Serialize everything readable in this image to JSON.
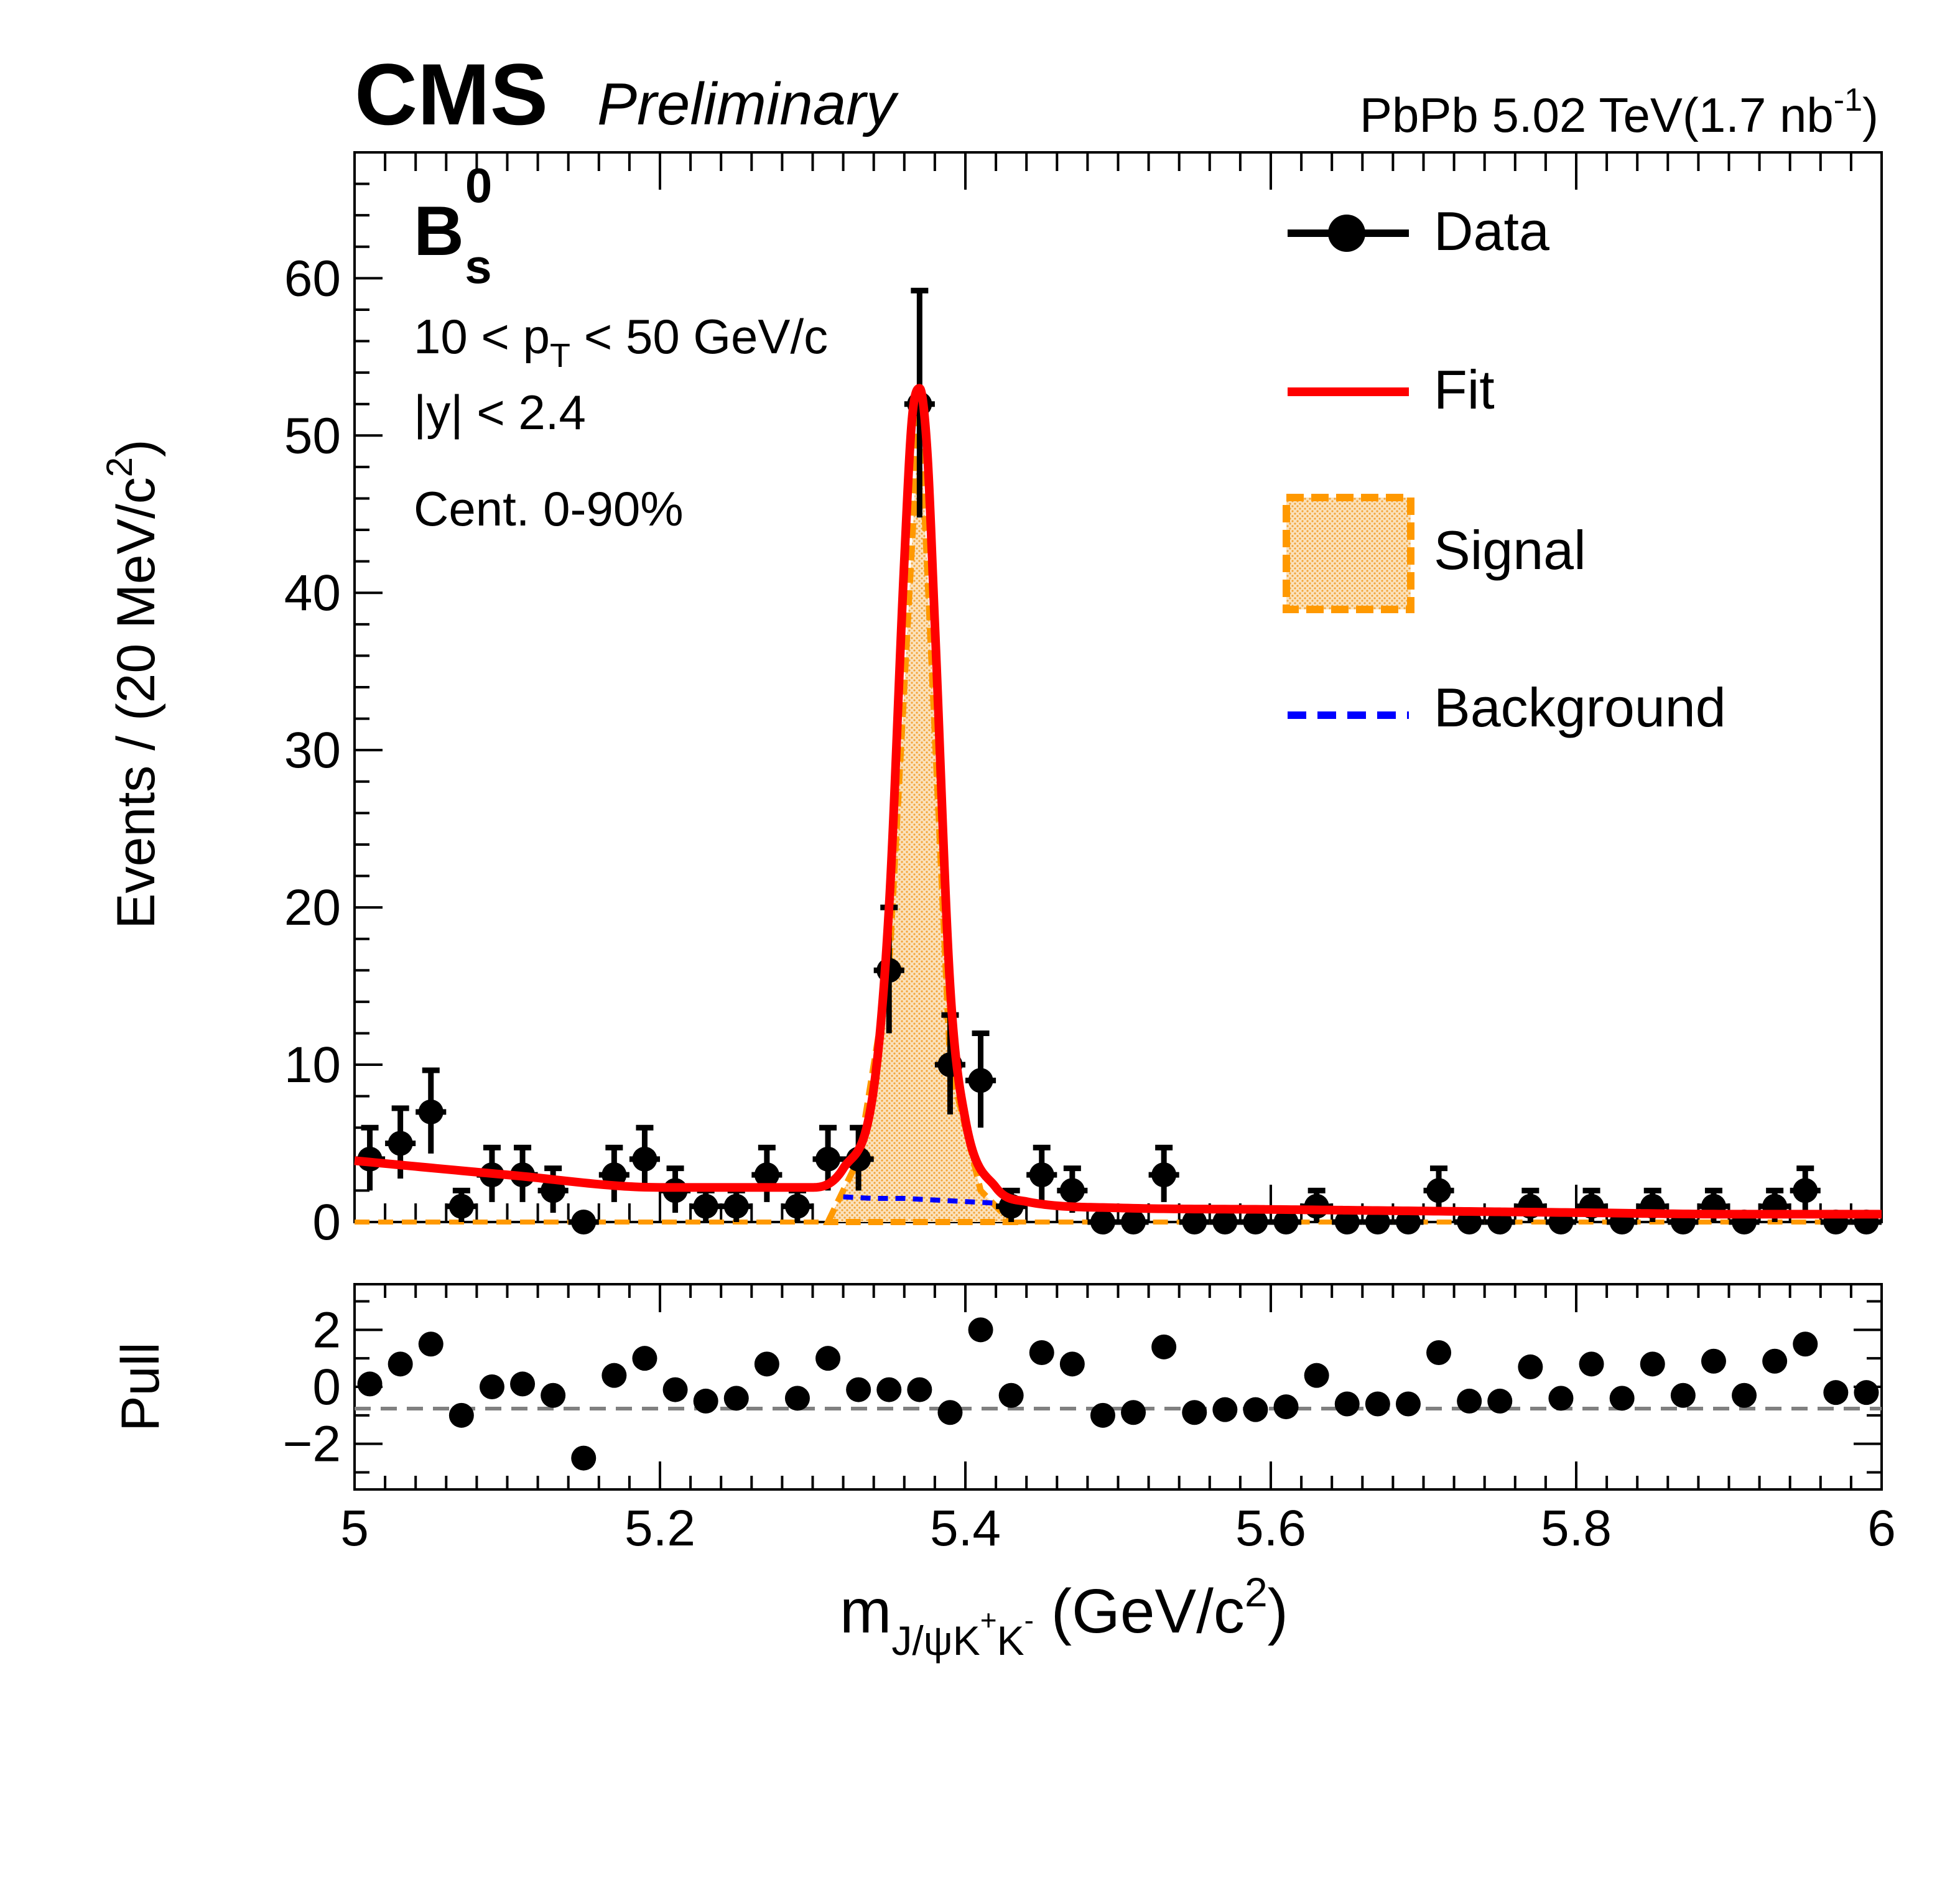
{
  "header": {
    "experiment": "CMS",
    "status": "Preliminary",
    "lumi_main": "PbPb 5.02 TeV(1.7 nb",
    "lumi_exp": "-1",
    "lumi_close": ")"
  },
  "annotations": {
    "particle_main": "B",
    "particle_sup": "0",
    "particle_sub": "s",
    "pt_pre": "10 < p",
    "pt_sub": "T",
    "pt_post": " < 50 GeV/c",
    "rapidity": "|y| < 2.4",
    "centrality": "Cent. 0-90%"
  },
  "axes": {
    "ylabel_main": "Events / (20 MeV/c",
    "ylabel_sup": "2",
    "ylabel_close": ")",
    "pull_label": "Pull",
    "xlabel_m": "m",
    "xlabel_sub1": "J/ψK",
    "xlabel_sup1": "+",
    "xlabel_sub2": "K",
    "xlabel_sup2": "-",
    "xlabel_unit": " (GeV/c",
    "xlabel_unit_sup": "2",
    "xlabel_close": ")",
    "x_ticks": [
      "5",
      "5.2",
      "5.4",
      "5.6",
      "5.8",
      "6"
    ],
    "y_ticks": [
      "0",
      "10",
      "20",
      "30",
      "40",
      "50",
      "60"
    ],
    "pull_ticks": [
      "−2",
      "0",
      "2"
    ]
  },
  "legend": {
    "data": "Data",
    "fit": "Fit",
    "signal": "Signal",
    "background": "Background"
  },
  "colors": {
    "data": "#000000",
    "fit": "#ff0000",
    "signal_fill": "#f7c98a",
    "signal_line": "#ff9900",
    "background": "#0000ff",
    "pull_zero": "#808080"
  },
  "chart_data": [
    {
      "type": "scatter",
      "title": "",
      "xlabel": "m_{J/ψK+K-} (GeV/c^2)",
      "ylabel": "Events / (20 MeV/c^2)",
      "xlim": [
        5.0,
        6.0
      ],
      "ylim": [
        0,
        68
      ],
      "bin_width": 0.02,
      "series": [
        {
          "name": "Data",
          "x": [
            5.01,
            5.03,
            5.05,
            5.07,
            5.09,
            5.11,
            5.13,
            5.15,
            5.17,
            5.19,
            5.21,
            5.23,
            5.25,
            5.27,
            5.29,
            5.31,
            5.33,
            5.35,
            5.37,
            5.39,
            5.41,
            5.43,
            5.45,
            5.47,
            5.49,
            5.51,
            5.53,
            5.55,
            5.57,
            5.59,
            5.61,
            5.63,
            5.65,
            5.67,
            5.69,
            5.71,
            5.73,
            5.75,
            5.77,
            5.79,
            5.81,
            5.83,
            5.85,
            5.87,
            5.89,
            5.91,
            5.93,
            5.95,
            5.97,
            5.99
          ],
          "y": [
            4,
            5,
            7,
            1,
            3,
            3,
            2,
            0,
            3,
            4,
            2,
            1,
            1,
            3,
            1,
            4,
            4,
            16,
            52,
            10,
            9,
            1,
            3,
            2,
            0,
            0,
            3,
            0,
            0,
            0,
            0,
            1,
            0,
            0,
            0,
            2,
            0,
            0,
            1,
            0,
            1,
            0,
            1,
            0,
            1,
            0,
            1,
            2,
            0,
            0
          ]
        },
        {
          "name": "Fit",
          "x": [
            5.0,
            5.1,
            5.2,
            5.3,
            5.32,
            5.34,
            5.35,
            5.36,
            5.365,
            5.37,
            5.375,
            5.38,
            5.39,
            5.4,
            5.42,
            5.44,
            5.5,
            5.6,
            5.7,
            5.8,
            5.9,
            6.0
          ],
          "y": [
            3.9,
            3.0,
            2.2,
            2.2,
            3.4,
            8.5,
            20,
            42,
            51,
            53,
            49,
            38,
            15,
            6.5,
            2.2,
            1.3,
            0.9,
            0.8,
            0.7,
            0.6,
            0.5,
            0.5
          ]
        },
        {
          "name": "Signal",
          "x": [
            5.31,
            5.33,
            5.35,
            5.37,
            5.39,
            5.41,
            5.43
          ],
          "y": [
            0,
            4,
            16,
            52,
            10,
            2,
            0
          ]
        },
        {
          "name": "Background",
          "x": [
            5.32,
            5.34,
            5.36,
            5.38,
            5.4,
            5.42
          ],
          "y": [
            1.6,
            1.5,
            1.5,
            1.4,
            1.3,
            1.2
          ]
        }
      ]
    },
    {
      "type": "scatter",
      "title": "",
      "xlabel": "m_{J/ψK+K-} (GeV/c^2)",
      "ylabel": "Pull",
      "xlim": [
        5.0,
        6.0
      ],
      "ylim": [
        -3.6,
        3.6
      ],
      "series": [
        {
          "name": "Pull",
          "x": [
            5.01,
            5.03,
            5.05,
            5.07,
            5.09,
            5.11,
            5.13,
            5.15,
            5.17,
            5.19,
            5.21,
            5.23,
            5.25,
            5.27,
            5.29,
            5.31,
            5.33,
            5.35,
            5.37,
            5.39,
            5.41,
            5.43,
            5.45,
            5.47,
            5.49,
            5.51,
            5.53,
            5.55,
            5.57,
            5.59,
            5.61,
            5.63,
            5.65,
            5.67,
            5.69,
            5.71,
            5.73,
            5.75,
            5.77,
            5.79,
            5.81,
            5.83,
            5.85,
            5.87,
            5.89,
            5.91,
            5.93,
            5.95,
            5.97,
            5.99
          ],
          "y": [
            0.1,
            0.8,
            1.5,
            -1.0,
            0.0,
            0.1,
            -0.3,
            -2.5,
            0.4,
            1.0,
            -0.1,
            -0.5,
            -0.4,
            0.8,
            -0.4,
            1.0,
            -0.1,
            -0.1,
            -0.1,
            -0.9,
            2.0,
            -0.3,
            1.2,
            0.8,
            -1.0,
            -0.9,
            1.4,
            -0.9,
            -0.8,
            -0.8,
            -0.7,
            0.4,
            -0.6,
            -0.6,
            -0.6,
            1.2,
            -0.5,
            -0.5,
            0.7,
            -0.4,
            0.8,
            -0.4,
            0.8,
            -0.3,
            0.9,
            -0.3,
            0.9,
            1.5,
            -0.2,
            -0.2
          ]
        }
      ]
    }
  ]
}
